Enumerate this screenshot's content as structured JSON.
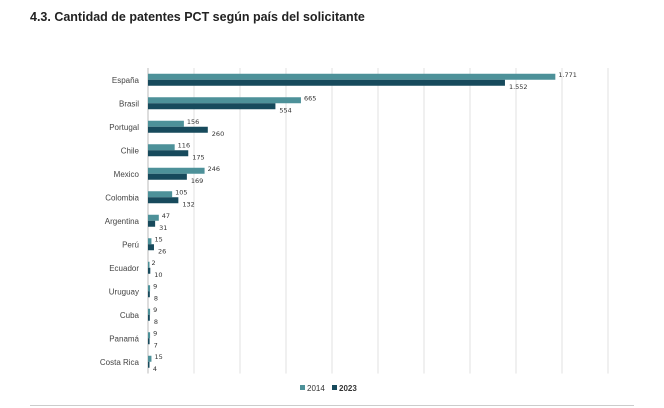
{
  "chart_data": {
    "type": "bar",
    "orientation": "horizontal",
    "title": "4.3. Cantidad de patentes PCT según país del solicitante",
    "categories": [
      "España",
      "Brasil",
      "Portugal",
      "Chile",
      "Mexico",
      "Colombia",
      "Argentina",
      "Perú",
      "Ecuador",
      "Uruguay",
      "Cuba",
      "Panamá",
      "Costa Rica"
    ],
    "series": [
      {
        "name": "2014",
        "color": "#4d9199",
        "values": [
          1771,
          665,
          156,
          116,
          246,
          105,
          47,
          15,
          2,
          9,
          9,
          9,
          15
        ],
        "labels": [
          "1.771",
          "665",
          "156",
          "116",
          "246",
          "105",
          "47",
          "15",
          "2",
          "9",
          "9",
          "9",
          "15"
        ]
      },
      {
        "name": "2023",
        "color": "#174a5c",
        "values": [
          1552,
          554,
          260,
          175,
          169,
          132,
          31,
          26,
          10,
          8,
          8,
          7,
          4
        ],
        "labels": [
          "1.552",
          "554",
          "260",
          "175",
          "169",
          "132",
          "31",
          "26",
          "10",
          "8",
          "8",
          "7",
          "4"
        ]
      }
    ],
    "xlim": [
      0,
      2000
    ],
    "grid": true,
    "legend": "bottom"
  }
}
